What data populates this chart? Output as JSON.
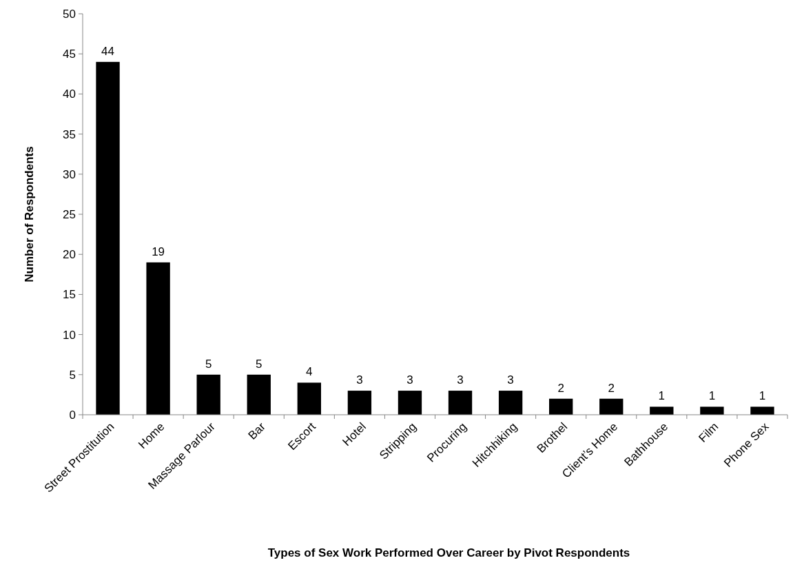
{
  "chart_data": {
    "type": "bar",
    "xlabel": "Types of Sex Work Performed Over Career by Pivot Respondents",
    "ylabel": "Number of Respondents",
    "categories": [
      "Street Prostitution",
      "Home",
      "Massage Parlour",
      "Bar",
      "Escort",
      "Hotel",
      "Stripping",
      "Procuring",
      "Hitchhiking",
      "Brothel",
      "Client’s Home",
      "Bathhouse",
      "Film",
      "Phone Sex"
    ],
    "values": [
      44,
      19,
      5,
      5,
      4,
      3,
      3,
      3,
      3,
      2,
      2,
      1,
      1,
      1
    ],
    "color": "#000000",
    "ylim": [
      0,
      50
    ],
    "yticks": [
      0,
      5,
      10,
      15,
      20,
      25,
      30,
      35,
      40,
      45,
      50
    ],
    "data_labels": true,
    "grid": false
  }
}
